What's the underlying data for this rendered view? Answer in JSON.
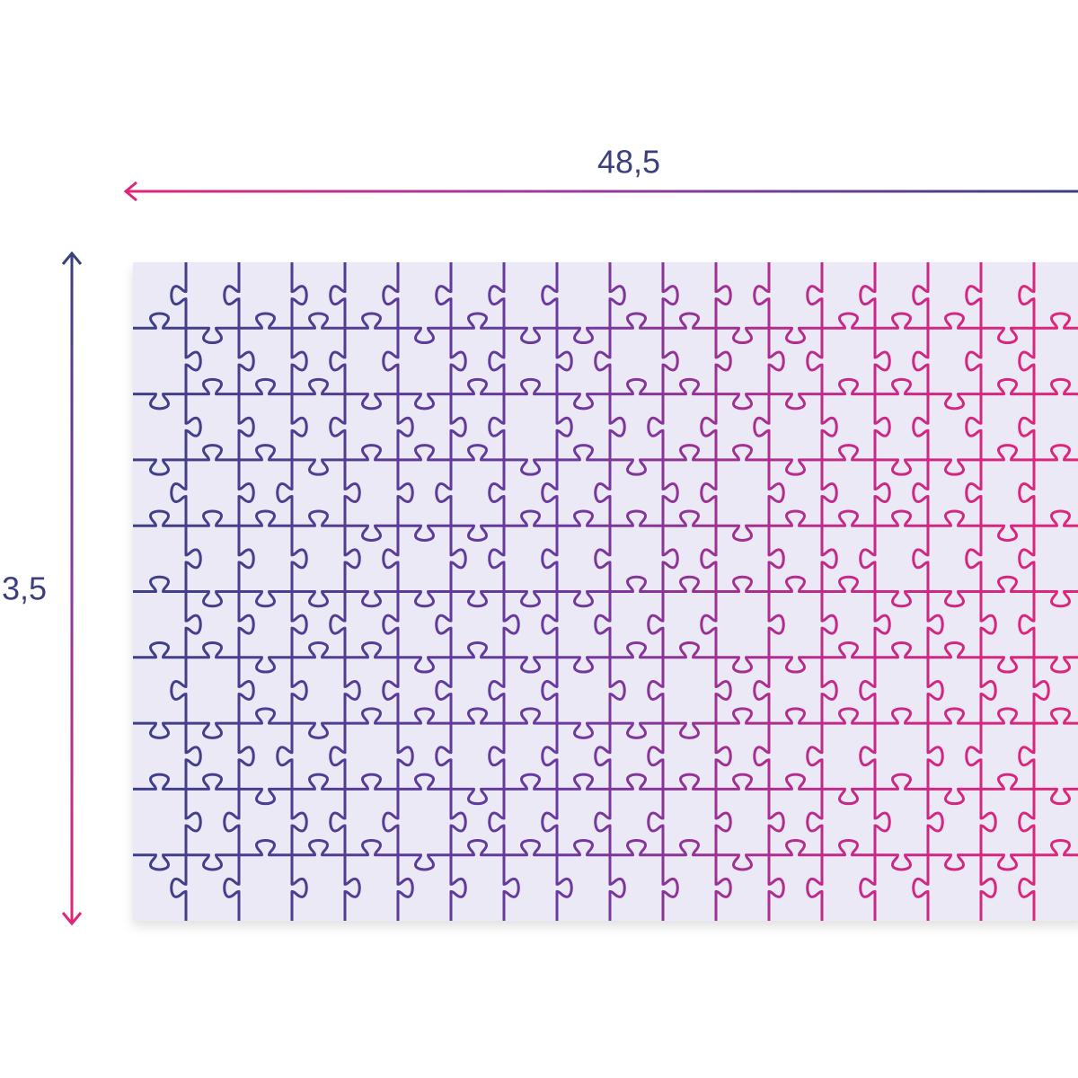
{
  "dimensions": {
    "width": "48,5",
    "height": "3,5"
  }
}
